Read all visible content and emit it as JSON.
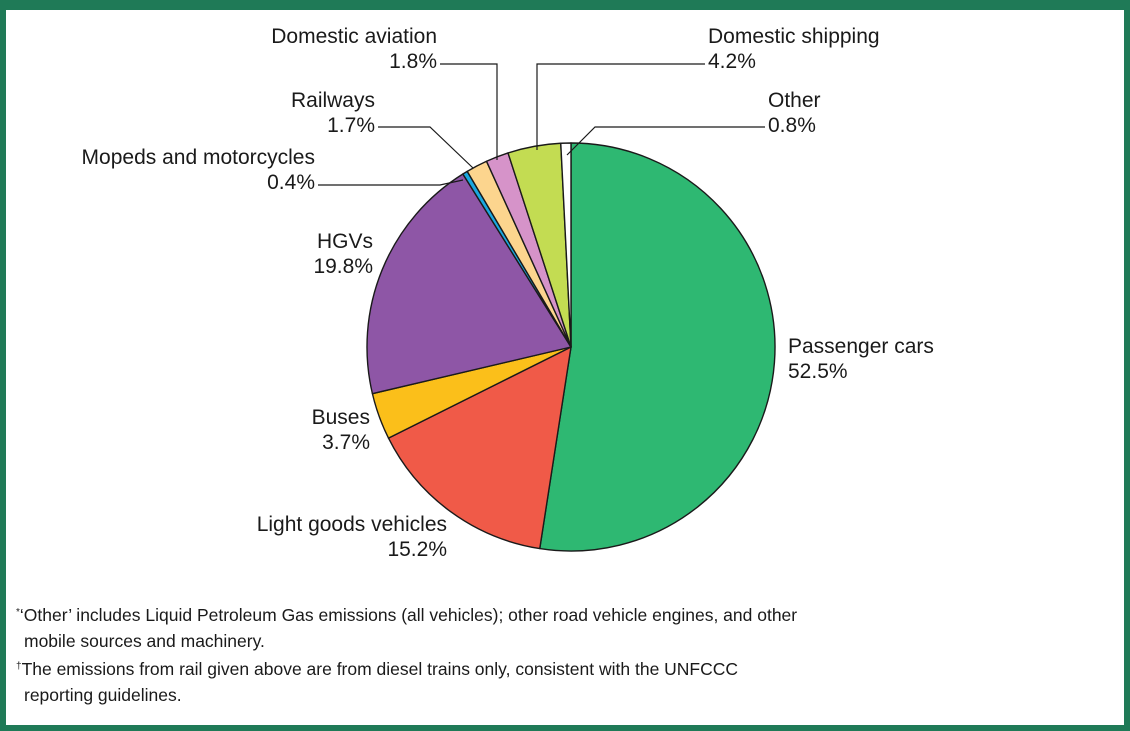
{
  "chart_data": {
    "type": "pie",
    "title": "",
    "start_angle_deg": 0,
    "direction": "clockwise",
    "slices": [
      {
        "label": "Passenger cars",
        "value": 52.5,
        "value_label": "52.5%",
        "color": "#2eb872"
      },
      {
        "label": "Light goods vehicles",
        "value": 15.2,
        "value_label": "15.2%",
        "color": "#f05a48"
      },
      {
        "label": "Buses",
        "value": 3.7,
        "value_label": "3.7%",
        "color": "#fbbf1a"
      },
      {
        "label": "HGVs",
        "value": 19.8,
        "value_label": "19.8%",
        "color": "#8e56a6"
      },
      {
        "label": "Mopeds and motorcycles",
        "value": 0.4,
        "value_label": "0.4%",
        "color": "#1aa8e0"
      },
      {
        "label": "Railways",
        "value": 1.7,
        "value_label": "1.7%",
        "color": "#fcd58e"
      },
      {
        "label": "Domestic aviation",
        "value": 1.8,
        "value_label": "1.8%",
        "color": "#d693c9"
      },
      {
        "label": "Domestic shipping",
        "value": 4.2,
        "value_label": "4.2%",
        "color": "#c3dc52"
      },
      {
        "label": "Other",
        "value": 0.8,
        "value_label": "0.8%",
        "color": "#ffffff"
      }
    ]
  },
  "footnotes": {
    "note1_mark": "*",
    "note1_line1": "‘Other’ includes Liquid Petroleum Gas emissions (all vehicles); other road vehicle engines, and other",
    "note1_line2": "mobile sources and machinery.",
    "note2_mark": "†",
    "note2_line1": "The emissions from rail given above are from diesel trains only, consistent with the UNFCCC",
    "note2_line2": "reporting guidelines."
  }
}
